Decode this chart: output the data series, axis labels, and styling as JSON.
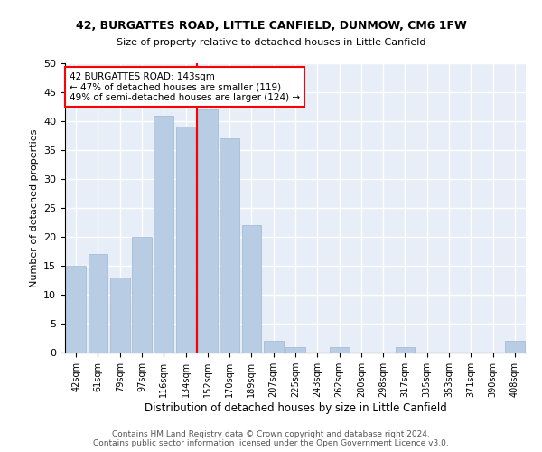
{
  "title1": "42, BURGATTES ROAD, LITTLE CANFIELD, DUNMOW, CM6 1FW",
  "title2": "Size of property relative to detached houses in Little Canfield",
  "xlabel": "Distribution of detached houses by size in Little Canfield",
  "ylabel": "Number of detached properties",
  "categories": [
    "42sqm",
    "61sqm",
    "79sqm",
    "97sqm",
    "116sqm",
    "134sqm",
    "152sqm",
    "170sqm",
    "189sqm",
    "207sqm",
    "225sqm",
    "243sqm",
    "262sqm",
    "280sqm",
    "298sqm",
    "317sqm",
    "335sqm",
    "353sqm",
    "371sqm",
    "390sqm",
    "408sqm"
  ],
  "values": [
    15,
    17,
    13,
    20,
    41,
    39,
    42,
    37,
    22,
    2,
    1,
    0,
    1,
    0,
    0,
    1,
    0,
    0,
    0,
    0,
    2
  ],
  "bar_color": "#b8cce4",
  "bar_edgecolor": "#9db8d2",
  "vline_x": 5.5,
  "vline_color": "red",
  "annotation_text": "42 BURGATTES ROAD: 143sqm\n← 47% of detached houses are smaller (119)\n49% of semi-detached houses are larger (124) →",
  "annotation_box_color": "white",
  "annotation_box_edgecolor": "red",
  "ylim": [
    0,
    50
  ],
  "yticks": [
    0,
    5,
    10,
    15,
    20,
    25,
    30,
    35,
    40,
    45,
    50
  ],
  "background_color": "#e8eef7",
  "grid_color": "white",
  "footer1": "Contains HM Land Registry data © Crown copyright and database right 2024.",
  "footer2": "Contains public sector information licensed under the Open Government Licence v3.0."
}
